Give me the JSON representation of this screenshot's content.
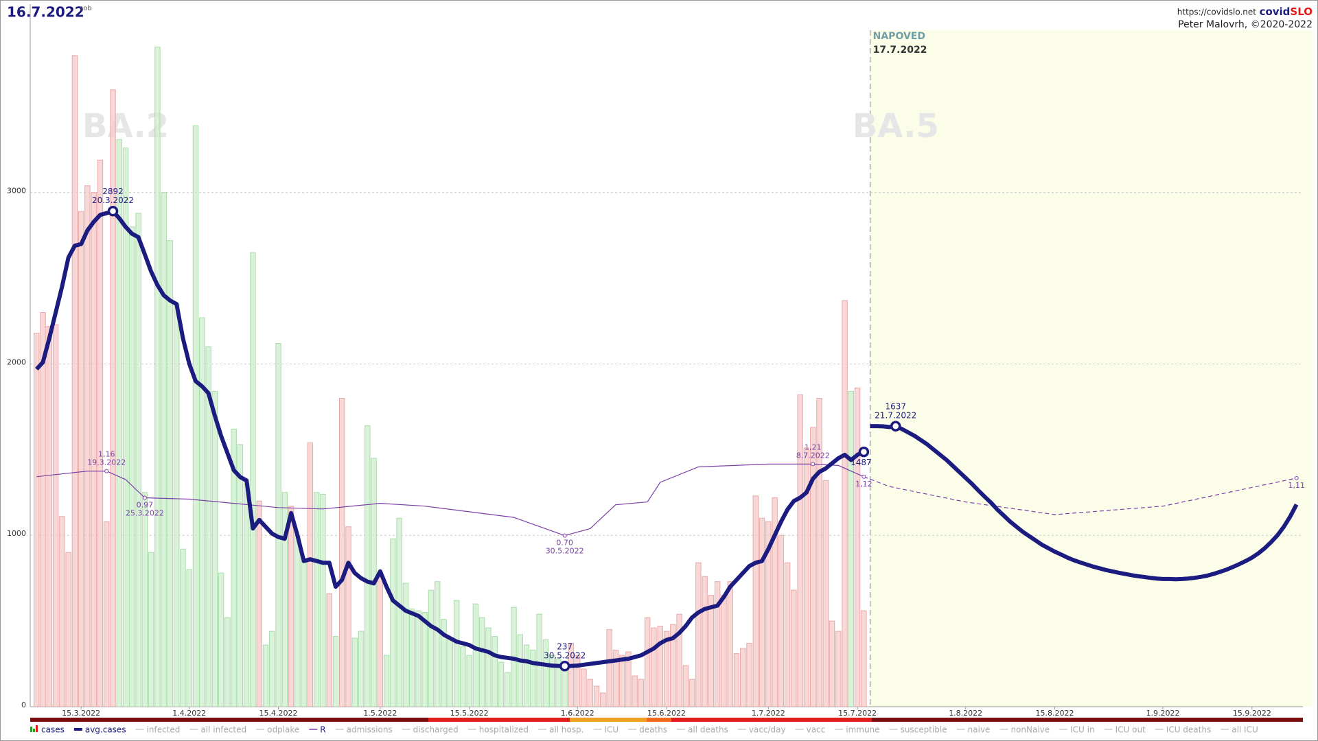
{
  "chart_data": {
    "type": "bar-line",
    "title": "16.7.2022",
    "weekday": "sob",
    "site": "https://covidslo.net",
    "logo_a": "covid",
    "logo_b": "SLO",
    "author": "Peter Malovrh, ©2020-2022",
    "xlim": [
      "7.3.2022",
      "23.9.2022"
    ],
    "xticks": [
      "15.3.2022",
      "1.4.2022",
      "15.4.2022",
      "1.5.2022",
      "15.5.2022",
      "1.6.2022",
      "15.6.2022",
      "1.7.2022",
      "15.7.2022",
      "1.8.2022",
      "15.8.2022",
      "1.9.2022",
      "15.9.2022"
    ],
    "ylim": [
      0,
      4100
    ],
    "yticks": [
      0,
      1000,
      2000,
      3000
    ],
    "y2lim": [
      -0.52,
      4.49
    ],
    "grid": true,
    "x": [
      "8.3.2022",
      "9.3.2022",
      "10.3.2022",
      "11.3.2022",
      "12.3.2022",
      "13.3.2022",
      "14.3.2022",
      "15.3.2022",
      "16.3.2022",
      "17.3.2022",
      "18.3.2022",
      "19.3.2022",
      "20.3.2022",
      "21.3.2022",
      "22.3.2022",
      "23.3.2022",
      "24.3.2022",
      "25.3.2022",
      "26.3.2022",
      "27.3.2022",
      "28.3.2022",
      "29.3.2022",
      "30.3.2022",
      "31.3.2022",
      "1.4.2022",
      "2.4.2022",
      "3.4.2022",
      "4.4.2022",
      "5.4.2022",
      "6.4.2022",
      "7.4.2022",
      "8.4.2022",
      "9.4.2022",
      "10.4.2022",
      "11.4.2022",
      "12.4.2022",
      "13.4.2022",
      "14.4.2022",
      "15.4.2022",
      "16.4.2022",
      "17.4.2022",
      "18.4.2022",
      "19.4.2022",
      "20.4.2022",
      "21.4.2022",
      "22.4.2022",
      "23.4.2022",
      "24.4.2022",
      "25.4.2022",
      "26.4.2022",
      "27.4.2022",
      "28.4.2022",
      "29.4.2022",
      "30.4.2022",
      "1.5.2022",
      "2.5.2022",
      "3.5.2022",
      "4.5.2022",
      "5.5.2022",
      "6.5.2022",
      "7.5.2022",
      "8.5.2022",
      "9.5.2022",
      "10.5.2022",
      "11.5.2022",
      "12.5.2022",
      "13.5.2022",
      "14.5.2022",
      "15.5.2022",
      "16.5.2022",
      "17.5.2022",
      "18.5.2022",
      "19.5.2022",
      "20.5.2022",
      "21.5.2022",
      "22.5.2022",
      "23.5.2022",
      "24.5.2022",
      "25.5.2022",
      "26.5.2022",
      "27.5.2022",
      "28.5.2022",
      "29.5.2022",
      "30.5.2022",
      "31.5.2022",
      "1.6.2022",
      "2.6.2022",
      "3.6.2022",
      "4.6.2022",
      "5.6.2022",
      "6.6.2022",
      "7.6.2022",
      "8.6.2022",
      "9.6.2022",
      "10.6.2022",
      "11.6.2022",
      "12.6.2022",
      "13.6.2022",
      "14.6.2022",
      "15.6.2022",
      "16.6.2022",
      "17.6.2022",
      "18.6.2022",
      "19.6.2022",
      "20.6.2022",
      "21.6.2022",
      "22.6.2022",
      "23.6.2022",
      "24.6.2022",
      "25.6.2022",
      "26.6.2022",
      "27.6.2022",
      "28.6.2022",
      "29.6.2022",
      "30.6.2022",
      "1.7.2022",
      "2.7.2022",
      "3.7.2022",
      "4.7.2022",
      "5.7.2022",
      "6.7.2022",
      "7.7.2022",
      "8.7.2022",
      "9.7.2022",
      "10.7.2022",
      "11.7.2022",
      "12.7.2022",
      "13.7.2022",
      "14.7.2022",
      "15.7.2022",
      "16.7.2022"
    ],
    "series": [
      {
        "name": "cases",
        "type": "bar",
        "color_up": "#f5c9c9",
        "color_down": "#cdeecd",
        "stroke_up": "#e9a9a9",
        "stroke_down": "#a9dca9",
        "values": [
          2180,
          2300,
          2220,
          2230,
          1110,
          900,
          3800,
          2890,
          3040,
          3000,
          3190,
          1080,
          3600,
          3310,
          3260,
          2800,
          2880,
          1250,
          900,
          3850,
          3000,
          2720,
          2350,
          920,
          800,
          3390,
          2270,
          2100,
          1840,
          780,
          520,
          1620,
          1530,
          1300,
          2650,
          1200,
          360,
          440,
          2120,
          1250,
          1170,
          1000,
          850,
          1540,
          1250,
          1240,
          660,
          410,
          1800,
          1050,
          400,
          440,
          1640,
          1450,
          780,
          300,
          980,
          1100,
          720,
          570,
          560,
          550,
          680,
          730,
          510,
          400,
          620,
          350,
          300,
          600,
          520,
          460,
          410,
          260,
          200,
          580,
          420,
          360,
          330,
          540,
          390,
          300,
          280,
          250,
          370,
          300,
          220,
          160,
          120,
          80,
          450,
          330,
          300,
          320,
          180,
          160,
          520,
          460,
          470,
          440,
          480,
          540,
          240,
          160,
          840,
          760,
          650,
          730,
          650,
          730,
          310,
          340,
          370,
          1230,
          1100,
          1080,
          1220,
          1000,
          840,
          680,
          1820,
          1510,
          1630,
          1800,
          1320,
          500,
          440,
          2370,
          1840,
          1860,
          560
        ]
      },
      {
        "name": "avg.cases",
        "type": "line",
        "color": "#1c1c80",
        "values": [
          1970,
          2010,
          2150,
          2300,
          2450,
          2620,
          2690,
          2700,
          2780,
          2830,
          2870,
          2880,
          2892,
          2850,
          2800,
          2760,
          2740,
          2640,
          2540,
          2460,
          2400,
          2370,
          2350,
          2150,
          2000,
          1900,
          1870,
          1830,
          1700,
          1580,
          1480,
          1380,
          1340,
          1320,
          1040,
          1090,
          1050,
          1010,
          990,
          980,
          1130,
          1000,
          850,
          860,
          850,
          840,
          840,
          700,
          740,
          840,
          780,
          750,
          730,
          720,
          790,
          700,
          620,
          590,
          560,
          545,
          530,
          500,
          470,
          450,
          420,
          400,
          380,
          370,
          360,
          340,
          330,
          320,
          300,
          290,
          285,
          280,
          270,
          265,
          255,
          250,
          245,
          240,
          238,
          237,
          238,
          240,
          245,
          250,
          255,
          260,
          265,
          270,
          275,
          280,
          290,
          300,
          320,
          340,
          370,
          390,
          400,
          430,
          470,
          520,
          550,
          570,
          580,
          590,
          640,
          700,
          740,
          780,
          820,
          840,
          850,
          920,
          1000,
          1080,
          1150,
          1200,
          1220,
          1250,
          1330,
          1370,
          1390,
          1420,
          1450,
          1470,
          1440,
          1470,
          1487
        ]
      },
      {
        "name": "R",
        "type": "line",
        "axis": "y2",
        "color": "#7b3fa6",
        "x": [
          "8.3.2022",
          "12.3.2022",
          "16.3.2022",
          "19.3.2022",
          "22.3.2022",
          "25.3.2022",
          "1.4.2022",
          "8.4.2022",
          "15.4.2022",
          "22.4.2022",
          "1.5.2022",
          "8.5.2022",
          "15.5.2022",
          "22.5.2022",
          "30.5.2022",
          "3.6.2022",
          "7.6.2022",
          "12.6.2022",
          "14.6.2022",
          "20.6.2022",
          "1.7.2022",
          "8.7.2022",
          "12.7.2022",
          "16.7.2022"
        ],
        "values": [
          1.12,
          1.14,
          1.16,
          1.16,
          1.1,
          0.97,
          0.96,
          0.93,
          0.9,
          0.89,
          0.93,
          0.91,
          0.87,
          0.83,
          0.7,
          0.75,
          0.92,
          0.94,
          1.08,
          1.19,
          1.21,
          1.21,
          1.2,
          1.12
        ]
      }
    ],
    "forecast": {
      "label": "NAPOVED",
      "date": "17.7.2022",
      "color": "#fbfde9",
      "x": [
        "17.7.2022",
        "18.7.2022",
        "19.7.2022",
        "20.7.2022",
        "21.7.2022",
        "22.7.2022",
        "23.7.2022",
        "24.7.2022",
        "25.7.2022",
        "26.7.2022",
        "27.7.2022",
        "28.7.2022",
        "29.7.2022",
        "30.7.2022",
        "31.7.2022",
        "1.8.2022",
        "2.8.2022",
        "3.8.2022",
        "4.8.2022",
        "5.8.2022",
        "6.8.2022",
        "7.8.2022",
        "8.8.2022",
        "9.8.2022",
        "10.8.2022",
        "11.8.2022",
        "12.8.2022",
        "13.8.2022",
        "14.8.2022",
        "15.8.2022",
        "16.8.2022",
        "17.8.2022",
        "18.8.2022",
        "19.8.2022",
        "20.8.2022",
        "21.8.2022",
        "22.8.2022",
        "23.8.2022",
        "24.8.2022",
        "25.8.2022",
        "26.8.2022",
        "27.8.2022",
        "28.8.2022",
        "29.8.2022",
        "30.8.2022",
        "31.8.2022",
        "1.9.2022",
        "2.9.2022",
        "3.9.2022",
        "4.9.2022",
        "5.9.2022",
        "6.9.2022",
        "7.9.2022",
        "8.9.2022",
        "9.9.2022",
        "10.9.2022",
        "11.9.2022",
        "12.9.2022",
        "13.9.2022",
        "14.9.2022",
        "15.9.2022",
        "16.9.2022",
        "17.9.2022",
        "18.9.2022",
        "19.9.2022",
        "20.9.2022",
        "21.9.2022",
        "22.9.2022"
      ],
      "values": [
        1637,
        1637,
        1636,
        1632,
        1637,
        1620,
        1600,
        1580,
        1555,
        1530,
        1500,
        1470,
        1440,
        1405,
        1370,
        1335,
        1300,
        1262,
        1225,
        1190,
        1150,
        1115,
        1080,
        1050,
        1020,
        995,
        970,
        945,
        925,
        905,
        888,
        870,
        855,
        842,
        830,
        818,
        808,
        798,
        790,
        782,
        775,
        768,
        762,
        757,
        752,
        748,
        745,
        745,
        744,
        745,
        748,
        752,
        758,
        765,
        775,
        787,
        800,
        815,
        832,
        850,
        870,
        895,
        925,
        960,
        1000,
        1050,
        1110,
        1180
      ],
      "r_x": [
        "16.7.2022",
        "20.7.2022",
        "1.8.2022",
        "15.8.2022",
        "1.9.2022",
        "22.9.2022"
      ],
      "r_values": [
        1.12,
        1.05,
        0.94,
        0.85,
        0.91,
        1.11
      ]
    },
    "phases": [
      {
        "label": "BA.2",
        "x": "22.3.2022"
      },
      {
        "label": "BA.5",
        "x": "21.7.2022"
      }
    ],
    "annotations": [
      {
        "x": "20.3.2022",
        "value": 2892
      },
      {
        "x": "30.5.2022",
        "value": 237
      },
      {
        "x": "21.7.2022",
        "value": 1637
      },
      {
        "x": "16.7.2022",
        "value": 1487,
        "show_date": false
      }
    ],
    "r_annotations": [
      {
        "x": "19.3.2022",
        "value": 1.16,
        "label": "1,16"
      },
      {
        "x": "25.3.2022",
        "value": 0.97
      },
      {
        "x": "30.5.2022",
        "value": 0.7,
        "label": "0.70"
      },
      {
        "x": "8.7.2022",
        "value": 1.21,
        "label": "1,21"
      },
      {
        "x": "16.7.2022",
        "value": 1.12,
        "label": "1,12",
        "show_date": false
      },
      {
        "x": "22.9.2022",
        "value": 1.11,
        "label": "1,11",
        "show_date": false
      }
    ],
    "legend": [
      {
        "series": 0
      },
      {
        "series": 1
      },
      {
        "label": "infected"
      },
      {
        "label": "all infected"
      },
      {
        "label": "odplake"
      },
      {
        "series": 2
      },
      {
        "label": "admissions"
      },
      {
        "label": "discharged"
      },
      {
        "label": "hospitalized"
      },
      {
        "label": "all hosp."
      },
      {
        "label": "ICU"
      },
      {
        "label": "deaths"
      },
      {
        "label": "all deaths"
      },
      {
        "label": "vacc/day"
      },
      {
        "label": "vacc"
      },
      {
        "label": "immune"
      },
      {
        "label": "susceptible"
      },
      {
        "label": "naive"
      },
      {
        "label": "nonNaive"
      },
      {
        "label": "ICU in"
      },
      {
        "label": "ICU out"
      },
      {
        "label": "ICU deaths"
      },
      {
        "label": "all ICU"
      }
    ]
  }
}
